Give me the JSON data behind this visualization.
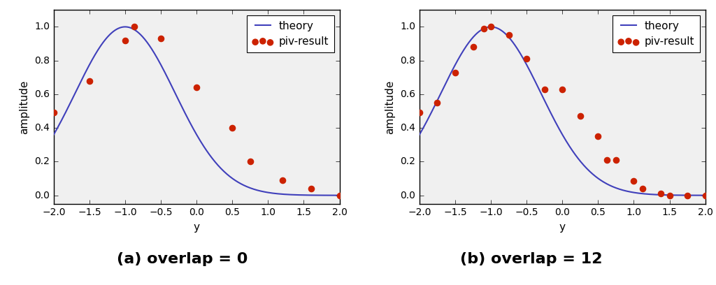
{
  "title_a": "(a) overlap = 0",
  "title_b": "(b) overlap = 12",
  "xlabel": "y",
  "ylabel": "amplitude",
  "xlim": [
    -2.0,
    2.0
  ],
  "ylim": [
    -0.05,
    1.1
  ],
  "theory_color": "#4040bb",
  "scatter_color": "#cc2200",
  "scatter_size": 35,
  "legend_entries": [
    "theory",
    "piv-result"
  ],
  "curve_peak": -1.0,
  "curve_sigma": 0.7,
  "scatter_a_x": [
    -2.0,
    -1.5,
    -1.0,
    -0.875,
    -0.5,
    0.0,
    0.5,
    0.75,
    1.2,
    1.6,
    2.0
  ],
  "scatter_a_y": [
    0.49,
    0.68,
    0.92,
    1.0,
    0.93,
    0.64,
    0.4,
    0.2,
    0.09,
    0.04,
    0.0
  ],
  "scatter_b_x": [
    -2.0,
    -1.75,
    -1.5,
    -1.25,
    -1.1,
    -1.0,
    -0.75,
    -0.5,
    -0.25,
    0.0,
    0.25,
    0.5,
    0.625,
    0.75,
    1.0,
    1.125,
    1.375,
    1.5,
    1.75,
    2.0
  ],
  "scatter_b_y": [
    0.49,
    0.55,
    0.73,
    0.88,
    0.99,
    1.0,
    0.95,
    0.81,
    0.63,
    0.63,
    0.47,
    0.35,
    0.21,
    0.21,
    0.085,
    0.04,
    0.01,
    0.0,
    0.0,
    0.0
  ],
  "title_fontsize": 16,
  "axis_fontsize": 11,
  "tick_fontsize": 10,
  "bg_color": "#f0f0f0"
}
